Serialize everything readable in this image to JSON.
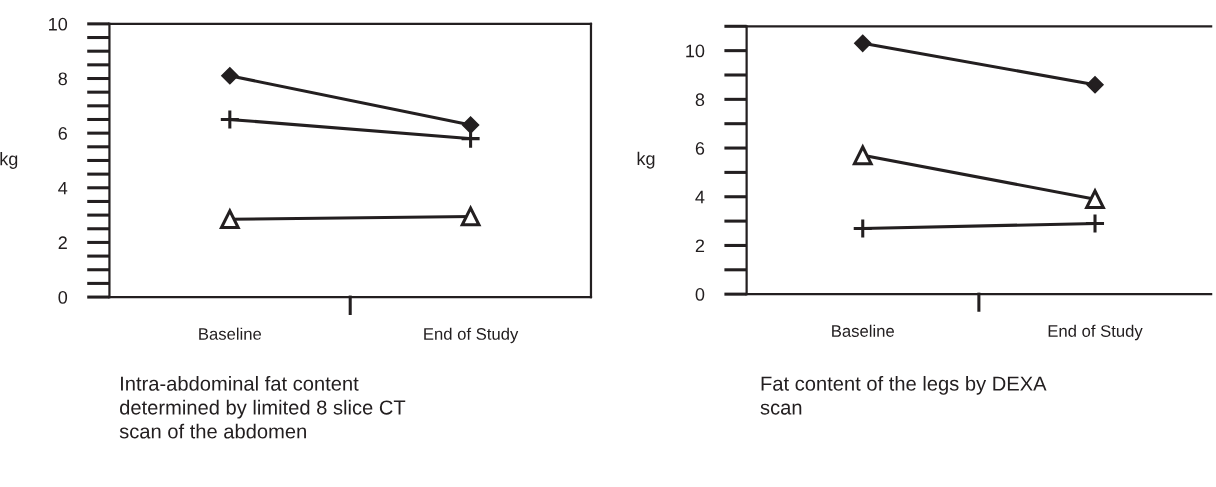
{
  "chart_data": [
    {
      "type": "line",
      "ylabel": "kg",
      "categories": [
        "Baseline",
        "End of Study"
      ],
      "ylim": [
        0,
        10
      ],
      "yticks": [
        0,
        2,
        4,
        6,
        8,
        10
      ],
      "series": [
        {
          "color": "#231f20",
          "marker": "diamond",
          "values": [
            8.1,
            6.3
          ]
        },
        {
          "color": "#231f20",
          "marker": "cross",
          "values": [
            6.5,
            5.8
          ]
        },
        {
          "color": "#231f20",
          "marker": "triangle",
          "values": [
            2.85,
            2.95
          ]
        }
      ],
      "annotations": [
        "Intra-abdominal fat content\ndetermined by limited 8 slice CT\nscan of the abdomen"
      ]
    },
    {
      "type": "line",
      "ylabel": "kg",
      "categories": [
        "Baseline",
        "End of Study"
      ],
      "ylim": [
        0,
        11
      ],
      "yticks": [
        0,
        2,
        4,
        6,
        8,
        10
      ],
      "series": [
        {
          "color": "#231f20",
          "marker": "diamond",
          "values": [
            10.3,
            8.6
          ]
        },
        {
          "color": "#231f20",
          "marker": "triangle",
          "values": [
            5.7,
            3.9
          ]
        },
        {
          "color": "#231f20",
          "marker": "cross",
          "values": [
            2.7,
            2.9
          ]
        }
      ],
      "annotations": [
        "Fat content of the legs by DEXA\nscan"
      ]
    }
  ]
}
